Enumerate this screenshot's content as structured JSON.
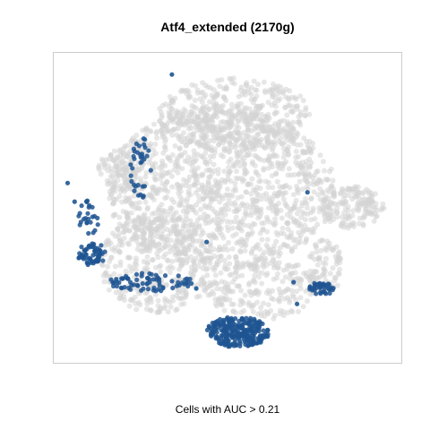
{
  "chart_data": {
    "type": "scatter",
    "title": "Atf4_extended (2170g)",
    "xlabel": "Cells with AUC > 0.21",
    "ylabel": "",
    "axes_visible": false,
    "grid": false,
    "legend": "none",
    "xlim": [
      0,
      100
    ],
    "ylim": [
      0,
      100
    ],
    "colors": {
      "background_cells": "#d3d3d3",
      "high_auc_cells": "#1f5592",
      "frame": "#cccccc"
    },
    "background_regions": [
      {
        "cx": 48,
        "cy": 56,
        "rx": 33,
        "ry": 26,
        "n": 1400
      },
      {
        "cx": 52,
        "cy": 80,
        "rx": 22,
        "ry": 12,
        "n": 420
      },
      {
        "cx": 30,
        "cy": 32,
        "rx": 17,
        "ry": 16,
        "n": 380
      },
      {
        "cx": 60,
        "cy": 24,
        "rx": 16,
        "ry": 10,
        "n": 220
      },
      {
        "cx": 86,
        "cy": 50,
        "rx": 9,
        "ry": 7,
        "n": 160
      },
      {
        "cx": 78,
        "cy": 31,
        "rx": 5,
        "ry": 9,
        "n": 90
      },
      {
        "cx": 18,
        "cy": 62,
        "rx": 6,
        "ry": 7,
        "n": 80
      }
    ],
    "highlight_clusters": [
      {
        "name": "bottom",
        "cx": 53,
        "cy": 10,
        "rx": 9,
        "ry": 5,
        "n": 260
      },
      {
        "name": "left-lower",
        "cx": 11,
        "cy": 35,
        "rx": 4,
        "ry": 4,
        "n": 60
      },
      {
        "name": "left-arc",
        "cx": 28,
        "cy": 26,
        "rx": 12,
        "ry": 3,
        "n": 70
      },
      {
        "name": "left-edge",
        "cx": 10,
        "cy": 47,
        "rx": 3,
        "ry": 6,
        "n": 25
      },
      {
        "name": "right-small",
        "cx": 77,
        "cy": 24,
        "rx": 4,
        "ry": 2,
        "n": 40
      },
      {
        "name": "upper-left",
        "cx": 25,
        "cy": 63,
        "rx": 3,
        "ry": 10,
        "n": 35
      }
    ],
    "highlight_singles": [
      {
        "x": 34,
        "y": 93
      },
      {
        "x": 73,
        "y": 55
      },
      {
        "x": 44,
        "y": 39
      },
      {
        "x": 69,
        "y": 26
      },
      {
        "x": 70,
        "y": 19
      },
      {
        "x": 41,
        "y": 24
      },
      {
        "x": 18,
        "y": 27
      },
      {
        "x": 4,
        "y": 58
      },
      {
        "x": 6,
        "y": 52
      }
    ]
  }
}
